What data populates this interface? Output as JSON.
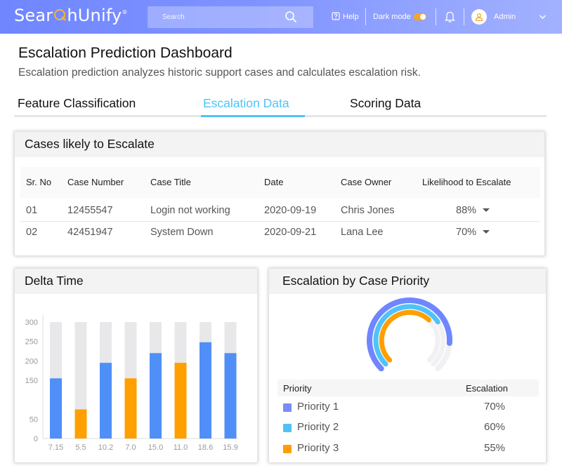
{
  "header": {
    "logo": {
      "before": "Sear",
      "after": "hUnify",
      "mark": "®"
    },
    "search_placeholder": "Search",
    "help_label": "Help",
    "dark_mode_label": "Dark mode",
    "dark_mode_on": true,
    "user_name": "Admin",
    "icons": [
      "search-icon",
      "help-icon",
      "bell-icon",
      "user-icon",
      "chevron-down-icon"
    ]
  },
  "page": {
    "title": "Escalation Prediction Dashboard",
    "subtitle": "Escalation prediction analyzes historic support cases and calculates escalation risk."
  },
  "tabs": [
    {
      "label": "Feature Classification",
      "active": false
    },
    {
      "label": "Escalation Data",
      "active": true
    },
    {
      "label": "Scoring Data",
      "active": false
    }
  ],
  "cases": {
    "title": "Cases likely to Escalate",
    "columns": [
      "Sr. No",
      "Case Number",
      "Case Title",
      "Date",
      "Case Owner",
      "Likelihood to Escalate"
    ],
    "rows": [
      {
        "sr": "01",
        "number": "12455547",
        "title": "Login not working",
        "date": "2020-09-19",
        "owner": "Chris Jones",
        "likelihood": "88%"
      },
      {
        "sr": "02",
        "number": "42451947",
        "title": "System Down",
        "date": "2020-09-21",
        "owner": "Lana Lee",
        "likelihood": "70%"
      }
    ]
  },
  "delta": {
    "title": "Delta Time"
  },
  "priority": {
    "title": "Escalation by Case Priority",
    "col_priority": "Priority",
    "col_escalation": "Escalation",
    "rows": [
      {
        "name": "Priority 1",
        "value": "70%",
        "color": "#7b8cf7"
      },
      {
        "name": "Priority 2",
        "value": "60%",
        "color": "#4fc3f7"
      },
      {
        "name": "Priority 3",
        "value": "55%",
        "color": "#ff9f00"
      }
    ]
  },
  "chart_data": [
    {
      "type": "bar",
      "categories": [
        "7.15",
        "5.5",
        "10.2",
        "7.0",
        "15.0",
        "11.0",
        "18.6",
        "15.9"
      ],
      "values": [
        155,
        75,
        195,
        155,
        220,
        195,
        248,
        220
      ],
      "max_track": 300,
      "bar_colors": [
        "#4f8ff7",
        "#ff9f00",
        "#4f8ff7",
        "#ff9f00",
        "#4f8ff7",
        "#ff9f00",
        "#4f8ff7",
        "#4f8ff7"
      ],
      "yticks": [
        "0",
        "50",
        "150",
        "200",
        "250",
        "300"
      ],
      "ylim": [
        0,
        300
      ],
      "grid": false
    },
    {
      "type": "radial-bar",
      "categories": [
        "Priority 1",
        "Priority 2",
        "Priority 3"
      ],
      "values": [
        70,
        60,
        55
      ],
      "colors": [
        "#6f86ff",
        "#4fc3f7",
        "#ff9f00"
      ]
    }
  ]
}
